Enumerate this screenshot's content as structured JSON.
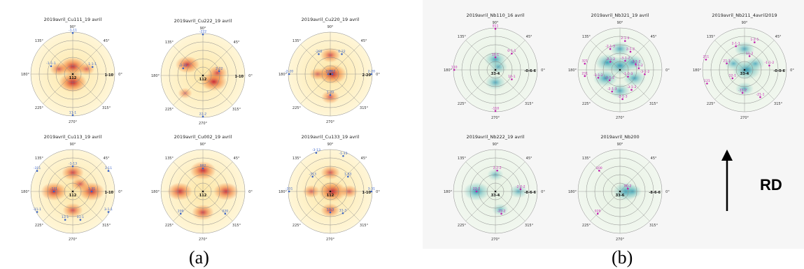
{
  "colors": {
    "cu_bg_outer": "#fff6d8",
    "cu_bg_inner": "#fde7a8",
    "cu_hot": "#c0142b",
    "cu_mid": "#f0742a",
    "nb_bg": "#e6f2e2",
    "nb_hot": "#1a8fb0",
    "nb_mid": "#7cc6c4",
    "cu_label": "#3a64c8",
    "nb_label": "#c21fae",
    "grid": "#8a8a8a"
  },
  "angle_labels": [
    "0°",
    "45°",
    "90°",
    "135°",
    "180°",
    "225°",
    "270°",
    "315°"
  ],
  "panel_labels": {
    "a": "(a)",
    "b": "(b)"
  },
  "rd": {
    "label": "RD"
  },
  "figures": [
    {
      "id": "cu111",
      "title": "2019avril_Cu111_19 avril",
      "palette": "cu",
      "center_label": "112",
      "edge_label": "1-10",
      "intensity": [
        {
          "r": 0.18,
          "theta": 90,
          "level": 0.9
        },
        {
          "r": 0.2,
          "theta": 270,
          "level": 1.0
        },
        {
          "r": 0.35,
          "theta": 160,
          "level": 0.5
        },
        {
          "r": 0.35,
          "theta": 20,
          "level": 0.4
        }
      ],
      "poles": [
        {
          "label": "-1-11",
          "r": 0.98,
          "theta": 90
        },
        {
          "label": "-1-1-1",
          "r": 0.55,
          "theta": 160
        },
        {
          "label": "1-1-1",
          "r": 0.5,
          "theta": 20
        },
        {
          "label": "11-1",
          "r": 0.98,
          "theta": 270
        }
      ]
    },
    {
      "id": "cu222",
      "title": "2019avril_Cu222_19 avril",
      "palette": "cu",
      "center_label": "112",
      "edge_label": "1-10",
      "intensity": [
        {
          "r": 0.45,
          "theta": 145,
          "level": 0.8
        },
        {
          "r": 0.3,
          "theta": 330,
          "level": 0.9
        },
        {
          "r": 0.35,
          "theta": 10,
          "level": 0.6
        },
        {
          "r": 0.6,
          "theta": 225,
          "level": 0.3
        }
      ],
      "poles": [
        {
          "label": "-222",
          "r": 0.98,
          "theta": 90
        },
        {
          "label": "-2-22",
          "r": 0.5,
          "theta": 160
        },
        {
          "label": "2-22",
          "r": 0.4,
          "theta": 15
        },
        {
          "label": "22-2",
          "r": 0.98,
          "theta": 270
        }
      ]
    },
    {
      "id": "cu220",
      "title": "2019avril_Cu220_19 avril",
      "palette": "cu",
      "center_label": "",
      "edge_label": "2-20",
      "intensity": [
        {
          "r": 0.05,
          "theta": 0,
          "level": 1.0
        },
        {
          "r": 0.45,
          "theta": 90,
          "level": 0.6
        },
        {
          "r": 0.55,
          "theta": 270,
          "level": 0.5
        },
        {
          "r": 0.3,
          "theta": 180,
          "level": 0.4
        }
      ],
      "poles": [
        {
          "label": "-202",
          "r": 0.55,
          "theta": 120
        },
        {
          "label": "0-22",
          "r": 0.55,
          "theta": 60
        },
        {
          "label": "-2-20",
          "r": 0.98,
          "theta": 180
        },
        {
          "label": "2-20",
          "r": 0.98,
          "theta": 0
        },
        {
          "label": "-220",
          "r": 0.05,
          "theta": 180
        },
        {
          "label": "202",
          "r": 0.05,
          "theta": 0
        },
        {
          "label": "1-20",
          "r": 0.5,
          "theta": 270
        }
      ]
    },
    {
      "id": "cu113",
      "title": "2019avril_Cu113_19 avril",
      "palette": "cu",
      "center_label": "112",
      "edge_label": "1-10",
      "intensity": [
        {
          "r": 0.45,
          "theta": 0,
          "level": 0.9
        },
        {
          "r": 0.45,
          "theta": 180,
          "level": 0.9
        },
        {
          "r": 0.45,
          "theta": 90,
          "level": 0.7
        },
        {
          "r": 0.45,
          "theta": 270,
          "level": 0.6
        },
        {
          "r": 0.25,
          "theta": 45,
          "level": 0.5
        }
      ],
      "poles": [
        {
          "label": "-311",
          "r": 0.98,
          "theta": 150
        },
        {
          "label": "3-11",
          "r": 0.98,
          "theta": 30
        },
        {
          "label": "-1-13",
          "r": 0.6,
          "theta": 90
        },
        {
          "label": "-131",
          "r": 0.45,
          "theta": 180
        },
        {
          "label": "1-31",
          "r": 0.45,
          "theta": 0
        },
        {
          "label": "-31-1",
          "r": 0.98,
          "theta": 210
        },
        {
          "label": "3-1-1",
          "r": 0.98,
          "theta": 330
        },
        {
          "label": "13-1",
          "r": 0.7,
          "theta": 255
        },
        {
          "label": "31-1",
          "r": 0.7,
          "theta": 285
        }
      ]
    },
    {
      "id": "cu002",
      "title": "2019avril_Cu002_19 avril",
      "palette": "cu",
      "center_label": "112",
      "edge_label": "",
      "intensity": [
        {
          "r": 0.5,
          "theta": 90,
          "level": 0.9
        },
        {
          "r": 0.55,
          "theta": 180,
          "level": 0.85
        },
        {
          "r": 0.55,
          "theta": 0,
          "level": 0.85
        },
        {
          "r": 0.5,
          "theta": 270,
          "level": 0.7
        }
      ],
      "poles": [
        {
          "label": "002",
          "r": 0.55,
          "theta": 90
        },
        {
          "label": "200",
          "r": 0.75,
          "theta": 225
        },
        {
          "label": "020",
          "r": 0.75,
          "theta": 315
        }
      ]
    },
    {
      "id": "cu133",
      "title": "2019avril_Cu133_19 avril",
      "palette": "cu",
      "center_label": "112",
      "edge_label": "1-10",
      "intensity": [
        {
          "r": 0.05,
          "theta": 0,
          "level": 1.0
        },
        {
          "r": 0.45,
          "theta": 90,
          "level": 0.55
        },
        {
          "r": 0.45,
          "theta": 270,
          "level": 0.55
        },
        {
          "r": 0.45,
          "theta": 180,
          "level": 0.45
        },
        {
          "r": 0.45,
          "theta": 0,
          "level": 0.45
        }
      ],
      "poles": [
        {
          "label": "-3-13",
          "r": 0.98,
          "theta": 110
        },
        {
          "label": "-1-33",
          "r": 0.9,
          "theta": 70
        },
        {
          "label": "-331",
          "r": 0.98,
          "theta": 180
        },
        {
          "label": "3-31",
          "r": 0.98,
          "theta": 0
        },
        {
          "label": "1-33",
          "r": 0.55,
          "theta": 40
        },
        {
          "label": "-313",
          "r": 0.55,
          "theta": 140
        },
        {
          "label": "13-3",
          "r": 0.5,
          "theta": 270
        },
        {
          "label": "31-3",
          "r": 0.6,
          "theta": 300
        }
      ]
    },
    {
      "id": "nb110",
      "title": "2019avril_Nb110_16 avril",
      "palette": "nb",
      "center_label": "33-4",
      "edge_label": "-0-6-6",
      "intensity": [
        {
          "r": 0.25,
          "theta": 90,
          "level": 0.7
        },
        {
          "r": 0.3,
          "theta": 270,
          "level": 0.6
        },
        {
          "r": 0.1,
          "theta": 45,
          "level": 0.5
        }
      ],
      "poles": [
        {
          "label": "011",
          "r": 0.98,
          "theta": 90
        },
        {
          "label": "10-1",
          "r": 0.3,
          "theta": 90
        },
        {
          "label": "0-1-1",
          "r": 0.55,
          "theta": 45
        },
        {
          "label": "110",
          "r": 0.98,
          "theta": 180
        },
        {
          "label": "10-1",
          "r": 0.45,
          "theta": 330
        },
        {
          "label": "-110",
          "r": 0.98,
          "theta": 270
        }
      ]
    },
    {
      "id": "nb321",
      "title": "2019avril_Nb321_19 avril",
      "palette": "nb",
      "center_label": "",
      "edge_label": "",
      "intensity": [
        {
          "r": 0.1,
          "theta": 90,
          "level": 0.9
        },
        {
          "r": 0.35,
          "theta": 150,
          "level": 0.8
        },
        {
          "r": 0.35,
          "theta": 30,
          "level": 0.7
        },
        {
          "r": 0.4,
          "theta": 210,
          "level": 0.8
        },
        {
          "r": 0.4,
          "theta": 330,
          "level": 0.7
        },
        {
          "r": 0.5,
          "theta": 90,
          "level": 0.6
        },
        {
          "r": 0.5,
          "theta": 270,
          "level": 0.6
        }
      ],
      "poles": [
        {
          "label": "2-1-3",
          "r": 0.7,
          "theta": 80
        },
        {
          "label": "-2-1-3",
          "r": 0.55,
          "theta": 115
        },
        {
          "label": "2-1-2",
          "r": 0.5,
          "theta": 60
        },
        {
          "label": "321",
          "r": 0.85,
          "theta": 170
        },
        {
          "label": "-3-1-2",
          "r": 0.4,
          "theta": 20
        },
        {
          "label": "3-1-2",
          "r": 0.45,
          "theta": 5
        },
        {
          "label": "-3-1-2",
          "r": 0.55,
          "theta": 200
        },
        {
          "label": "-3-1-2",
          "r": 0.6,
          "theta": 350
        },
        {
          "label": "231",
          "r": 0.85,
          "theta": 190
        },
        {
          "label": "-3-1-2",
          "r": 0.35,
          "theta": 225
        },
        {
          "label": "-2-1-3",
          "r": 0.55,
          "theta": 250
        },
        {
          "label": "-3-1-2",
          "r": 0.55,
          "theta": 300
        },
        {
          "label": "-2-1-3",
          "r": 0.7,
          "theta": 275
        },
        {
          "label": "-3-1-2",
          "r": 0.3,
          "theta": 140
        },
        {
          "label": "-3-1-2",
          "r": 0.25,
          "theta": 60
        },
        {
          "label": "-1-2-3",
          "r": 0.25,
          "theta": 320
        }
      ]
    },
    {
      "id": "nb211",
      "title": "2019avril_Nb211_4avril2019",
      "palette": "nb",
      "center_label": "33-4",
      "edge_label": "-0-0-6",
      "intensity": [
        {
          "r": 0.05,
          "theta": 0,
          "level": 1.0
        },
        {
          "r": 0.5,
          "theta": 90,
          "level": 0.6
        },
        {
          "r": 0.3,
          "theta": 150,
          "level": 0.5
        },
        {
          "r": 0.3,
          "theta": 30,
          "level": 0.5
        },
        {
          "r": 0.45,
          "theta": 270,
          "level": 0.5
        }
      ],
      "poles": [
        {
          "label": "2-1-1",
          "r": 0.6,
          "theta": 110
        },
        {
          "label": "1-2-1",
          "r": 0.7,
          "theta": 70
        },
        {
          "label": "11-2",
          "r": 0.35,
          "theta": 70
        },
        {
          "label": "211",
          "r": 0.95,
          "theta": 165
        },
        {
          "label": "21-1",
          "r": 0.45,
          "theta": 160
        },
        {
          "label": "-1-1-2",
          "r": 0.6,
          "theta": 10
        },
        {
          "label": "121",
          "r": 0.95,
          "theta": 200
        },
        {
          "label": "12-1",
          "r": 0.35,
          "theta": 215
        },
        {
          "label": "-11-2",
          "r": 0.55,
          "theta": 265
        },
        {
          "label": "-21-1",
          "r": 0.75,
          "theta": 300
        }
      ]
    },
    {
      "id": "nb222",
      "title": "2019avril_Nb222_19 avril",
      "palette": "nb",
      "center_label": "33-4",
      "edge_label": "-8-6-6",
      "intensity": [
        {
          "r": 0.45,
          "theta": 180,
          "level": 0.9
        },
        {
          "r": 0.4,
          "theta": 90,
          "level": 0.4
        },
        {
          "r": 0.55,
          "theta": 0,
          "level": 0.5
        },
        {
          "r": 0.45,
          "theta": 285,
          "level": 0.4
        }
      ],
      "poles": [
        {
          "label": "2-2-2",
          "r": 0.5,
          "theta": 85
        },
        {
          "label": "22-2",
          "r": 0.45,
          "theta": 180
        },
        {
          "label": "-2-2-2",
          "r": 0.6,
          "theta": 5
        },
        {
          "label": "-22-2",
          "r": 0.55,
          "theta": 285
        }
      ]
    },
    {
      "id": "nb200",
      "title": "2019avril_Nb200",
      "palette": "nb",
      "center_label": "33-6",
      "edge_label": "-8-6-6",
      "intensity": [
        {
          "r": 0.15,
          "theta": 0,
          "level": 0.9
        },
        {
          "r": 0.3,
          "theta": 0,
          "level": 0.5
        }
      ],
      "poles": [
        {
          "label": "200",
          "r": 0.7,
          "theta": 135
        },
        {
          "label": "020",
          "r": 0.75,
          "theta": 225
        },
        {
          "label": "00-2",
          "r": 0.2,
          "theta": 20
        }
      ]
    }
  ]
}
